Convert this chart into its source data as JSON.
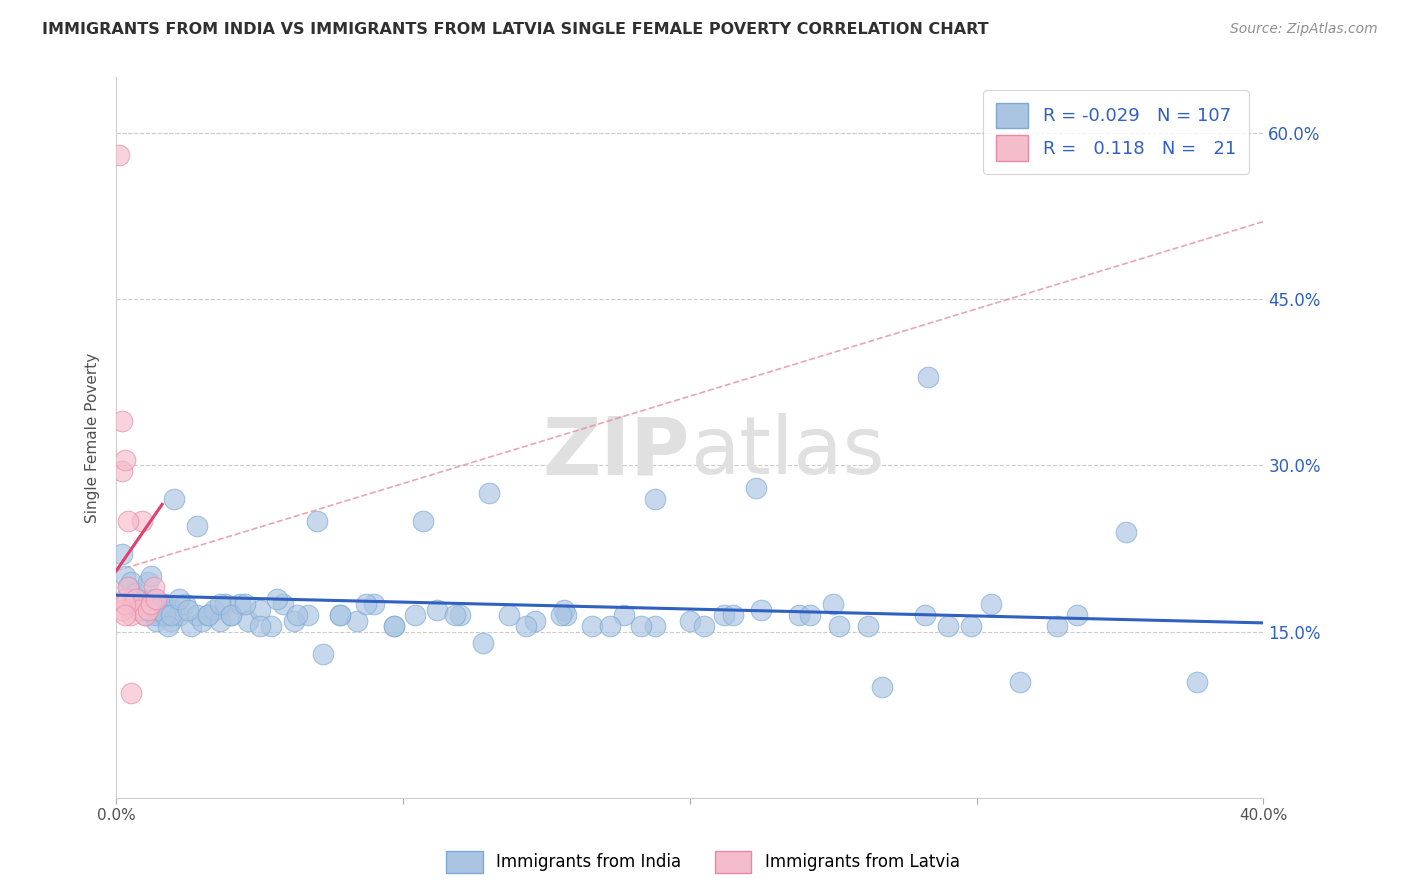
{
  "title": "IMMIGRANTS FROM INDIA VS IMMIGRANTS FROM LATVIA SINGLE FEMALE POVERTY CORRELATION CHART",
  "source": "Source: ZipAtlas.com",
  "ylabel": "Single Female Poverty",
  "xlim": [
    0.0,
    0.4
  ],
  "ylim": [
    0.0,
    0.65
  ],
  "xticks": [
    0.0,
    0.1,
    0.2,
    0.3,
    0.4
  ],
  "xtick_labels": [
    "0.0%",
    "",
    "",
    "",
    "40.0%"
  ],
  "yticks": [
    0.15,
    0.3,
    0.45,
    0.6
  ],
  "ytick_labels_right": [
    "15.0%",
    "30.0%",
    "45.0%",
    "60.0%"
  ],
  "legend_x_india": "Immigrants from India",
  "legend_x_latvia": "Immigrants from Latvia",
  "india_color": "#aac4e2",
  "india_edge_color": "#7baad4",
  "latvia_color": "#f5bccb",
  "latvia_edge_color": "#e888aa",
  "india_line_color": "#3060c0",
  "latvia_line_color": "#e04070",
  "dash_line_color": "#e08090",
  "grid_color": "#cccccc",
  "title_color": "#303030",
  "watermark": "ZIPAtlas",
  "R_india": -0.029,
  "N_india": 107,
  "R_latvia": 0.118,
  "N_latvia": 21,
  "india_x": [
    0.002,
    0.003,
    0.004,
    0.005,
    0.006,
    0.007,
    0.008,
    0.009,
    0.01,
    0.011,
    0.012,
    0.013,
    0.014,
    0.015,
    0.016,
    0.017,
    0.018,
    0.019,
    0.02,
    0.022,
    0.024,
    0.026,
    0.028,
    0.03,
    0.032,
    0.034,
    0.036,
    0.038,
    0.04,
    0.043,
    0.046,
    0.05,
    0.054,
    0.058,
    0.062,
    0.067,
    0.072,
    0.078,
    0.084,
    0.09,
    0.097,
    0.104,
    0.112,
    0.12,
    0.128,
    0.137,
    0.146,
    0.156,
    0.166,
    0.177,
    0.188,
    0.2,
    0.212,
    0.225,
    0.238,
    0.252,
    0.267,
    0.282,
    0.298,
    0.315,
    0.01,
    0.011,
    0.012,
    0.013,
    0.014,
    0.015,
    0.016,
    0.017,
    0.018,
    0.019,
    0.02,
    0.022,
    0.025,
    0.028,
    0.032,
    0.036,
    0.04,
    0.045,
    0.05,
    0.056,
    0.063,
    0.07,
    0.078,
    0.087,
    0.097,
    0.107,
    0.118,
    0.13,
    0.143,
    0.157,
    0.172,
    0.188,
    0.205,
    0.223,
    0.242,
    0.262,
    0.283,
    0.305,
    0.328,
    0.352,
    0.377,
    0.335,
    0.29,
    0.25,
    0.215,
    0.183,
    0.155
  ],
  "india_y": [
    0.22,
    0.2,
    0.19,
    0.195,
    0.18,
    0.185,
    0.175,
    0.17,
    0.165,
    0.175,
    0.18,
    0.17,
    0.16,
    0.17,
    0.165,
    0.175,
    0.165,
    0.16,
    0.17,
    0.165,
    0.175,
    0.155,
    0.165,
    0.16,
    0.165,
    0.17,
    0.16,
    0.175,
    0.165,
    0.175,
    0.16,
    0.17,
    0.155,
    0.175,
    0.16,
    0.165,
    0.13,
    0.165,
    0.16,
    0.175,
    0.155,
    0.165,
    0.17,
    0.165,
    0.14,
    0.165,
    0.16,
    0.17,
    0.155,
    0.165,
    0.155,
    0.16,
    0.165,
    0.17,
    0.165,
    0.155,
    0.1,
    0.165,
    0.155,
    0.105,
    0.175,
    0.195,
    0.2,
    0.18,
    0.165,
    0.17,
    0.175,
    0.165,
    0.155,
    0.165,
    0.27,
    0.18,
    0.17,
    0.245,
    0.165,
    0.175,
    0.165,
    0.175,
    0.155,
    0.18,
    0.165,
    0.25,
    0.165,
    0.175,
    0.155,
    0.25,
    0.165,
    0.275,
    0.155,
    0.165,
    0.155,
    0.27,
    0.155,
    0.28,
    0.165,
    0.155,
    0.38,
    0.175,
    0.155,
    0.24,
    0.105,
    0.165,
    0.155,
    0.175,
    0.165,
    0.155,
    0.165
  ],
  "latvia_x": [
    0.001,
    0.002,
    0.002,
    0.003,
    0.003,
    0.004,
    0.005,
    0.006,
    0.007,
    0.008,
    0.009,
    0.01,
    0.011,
    0.012,
    0.013,
    0.014,
    0.002,
    0.003,
    0.004,
    0.003,
    0.005
  ],
  "latvia_y": [
    0.58,
    0.34,
    0.295,
    0.305,
    0.18,
    0.19,
    0.165,
    0.175,
    0.18,
    0.17,
    0.25,
    0.165,
    0.17,
    0.175,
    0.19,
    0.18,
    0.17,
    0.175,
    0.25,
    0.165,
    0.095
  ],
  "india_trend_x": [
    0.0,
    0.4
  ],
  "india_trend_y": [
    0.183,
    0.158
  ],
  "latvia_trend_x": [
    0.0,
    0.016
  ],
  "latvia_trend_y": [
    0.205,
    0.265
  ],
  "dash_trend_x": [
    0.0,
    0.4
  ],
  "dash_trend_y": [
    0.205,
    0.52
  ]
}
